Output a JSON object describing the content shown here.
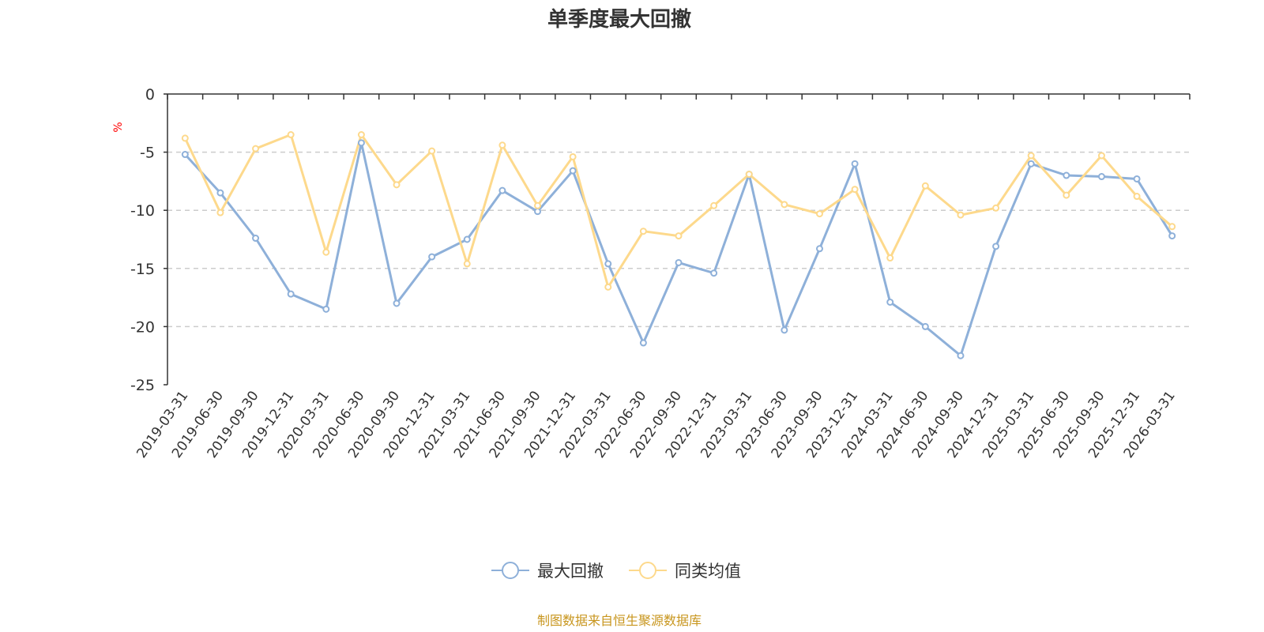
{
  "chart_data": {
    "type": "line",
    "title": "单季度最大回撤",
    "ylabel": "%",
    "xlabel": "",
    "ylim": [
      -25,
      0
    ],
    "yticks": [
      0,
      -5,
      -10,
      -15,
      -20,
      -25
    ],
    "grid": true,
    "legend_position": "bottom-center",
    "categories": [
      "2019-03-31",
      "2019-06-30",
      "2019-09-30",
      "2019-12-31",
      "2020-03-31",
      "2020-06-30",
      "2020-09-30",
      "2020-12-31",
      "2021-03-31",
      "2021-06-30",
      "2021-09-30",
      "2021-12-31",
      "2022-03-31",
      "2022-06-30",
      "2022-09-30",
      "2022-12-31",
      "2023-03-31",
      "2023-06-30",
      "2023-09-30",
      "2023-12-31",
      "2024-03-31",
      "2024-06-30",
      "2024-09-30",
      "2024-12-31",
      "2025-03-31",
      "2025-06-30",
      "2025-09-30",
      "2025-12-31",
      "2026-03-31"
    ],
    "series": [
      {
        "name": "最大回撤",
        "color": "#8eb0d9",
        "values": [
          -5.2,
          -8.5,
          -12.4,
          -17.2,
          -18.5,
          -4.2,
          -18.0,
          -14.0,
          -12.5,
          -8.3,
          -10.1,
          -6.6,
          -14.6,
          -21.4,
          -14.5,
          -15.4,
          -6.9,
          -20.3,
          -13.3,
          -6.0,
          -17.9,
          -20.0,
          -22.5,
          -13.1,
          -6.0,
          -7.0,
          -7.1,
          -7.3,
          -12.2
        ]
      },
      {
        "name": "同类均值",
        "color": "#fdd98c",
        "values": [
          -3.8,
          -10.2,
          -4.7,
          -3.5,
          -13.6,
          -3.5,
          -7.8,
          -4.9,
          -14.6,
          -4.4,
          -9.6,
          -5.4,
          -16.6,
          -11.8,
          -12.2,
          -9.6,
          -6.9,
          -9.5,
          -10.3,
          -8.2,
          -14.1,
          -7.9,
          -10.4,
          -9.8,
          -5.3,
          -8.7,
          -5.3,
          -8.8,
          -11.4
        ]
      }
    ]
  },
  "footer": {
    "source": "制图数据来自恒生聚源数据库"
  }
}
